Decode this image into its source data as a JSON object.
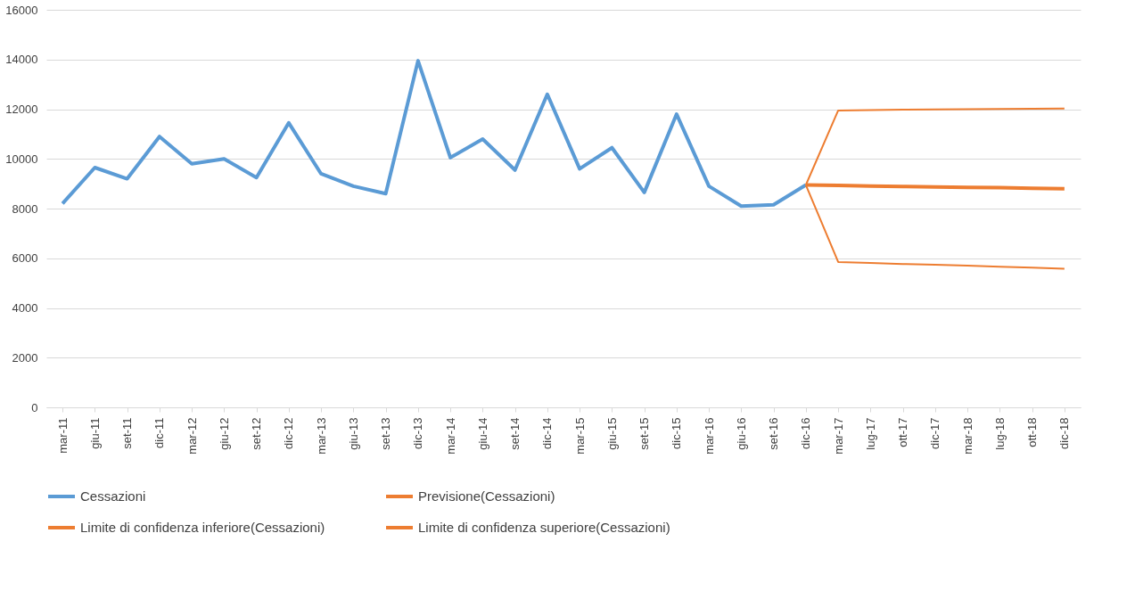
{
  "chart_data": {
    "type": "line",
    "categories": [
      "mar-11",
      "giu-11",
      "set-11",
      "dic-11",
      "mar-12",
      "giu-12",
      "set-12",
      "dic-12",
      "mar-13",
      "giu-13",
      "set-13",
      "dic-13",
      "mar-14",
      "giu-14",
      "set-14",
      "dic-14",
      "mar-15",
      "giu-15",
      "set-15",
      "dic-15",
      "mar-16",
      "giu-16",
      "set-16",
      "dic-16",
      "mar-17",
      "lug-17",
      "ott-17",
      "dic-17",
      "mar-18",
      "lug-18",
      "ott-18",
      "dic-18"
    ],
    "series": [
      {
        "name": "Cessazioni",
        "color": "#5b9bd5",
        "values": [
          8200,
          9650,
          9200,
          10900,
          9800,
          10000,
          9250,
          11450,
          9400,
          8900,
          8600,
          13950,
          10050,
          10800,
          9550,
          12600,
          9600,
          10450,
          8650,
          11800,
          8900,
          8100,
          8150,
          8950,
          null,
          null,
          null,
          null,
          null,
          null,
          null,
          null
        ]
      },
      {
        "name": "Previsione(Cessazioni)",
        "color": "#ed7d31",
        "values": [
          null,
          null,
          null,
          null,
          null,
          null,
          null,
          null,
          null,
          null,
          null,
          null,
          null,
          null,
          null,
          null,
          null,
          null,
          null,
          null,
          null,
          null,
          null,
          8950,
          8930,
          8910,
          8890,
          8870,
          8850,
          8840,
          8820,
          8800
        ]
      },
      {
        "name": "Limite di confidenza inferiore(Cessazioni)",
        "color": "#ed7d31",
        "values": [
          null,
          null,
          null,
          null,
          null,
          null,
          null,
          null,
          null,
          null,
          null,
          null,
          null,
          null,
          null,
          null,
          null,
          null,
          null,
          null,
          null,
          null,
          null,
          8950,
          5850,
          5810,
          5770,
          5740,
          5700,
          5660,
          5620,
          5580
        ]
      },
      {
        "name": "Limite di confidenza superiore(Cessazioni)",
        "color": "#ed7d31",
        "values": [
          null,
          null,
          null,
          null,
          null,
          null,
          null,
          null,
          null,
          null,
          null,
          null,
          null,
          null,
          null,
          null,
          null,
          null,
          null,
          null,
          null,
          null,
          null,
          8950,
          11950,
          11960,
          11980,
          11990,
          12000,
          12010,
          12020,
          12030
        ]
      }
    ],
    "ylim": [
      0,
      16000
    ],
    "yticks": [
      0,
      2000,
      4000,
      6000,
      8000,
      10000,
      12000,
      14000,
      16000
    ],
    "grid": "y",
    "legend": "bottom",
    "marker": "none",
    "line_style": "solid"
  }
}
